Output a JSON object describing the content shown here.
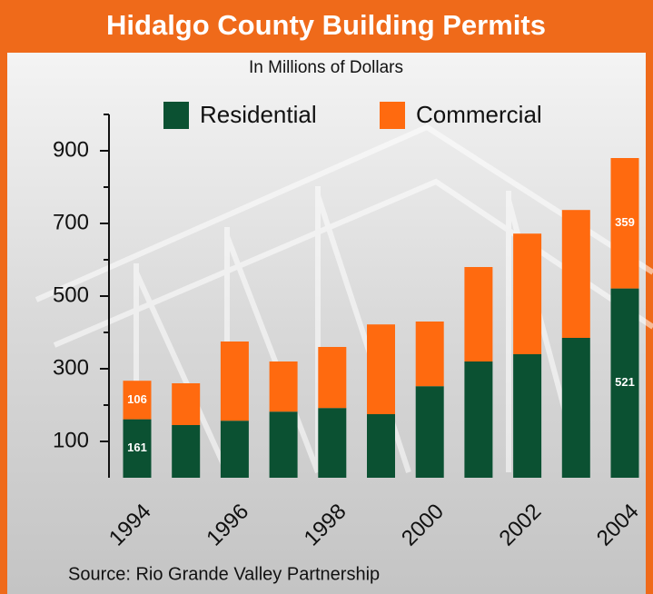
{
  "chart_data": {
    "type": "stacked_bar",
    "title": "Hidalgo County Building Permits",
    "subtitle": "In Millions of Dollars",
    "source": "Source: Rio Grande Valley Partnership",
    "categories": [
      1994,
      null,
      1996,
      null,
      1998,
      null,
      2000,
      null,
      2002,
      null,
      2004
    ],
    "series": [
      {
        "name": "Residential",
        "color": "#0b5132",
        "values": [
          161,
          145,
          157,
          182,
          192,
          175,
          252,
          320,
          340,
          385,
          521
        ],
        "value_labels": [
          "161",
          null,
          null,
          null,
          null,
          null,
          null,
          null,
          null,
          null,
          "521"
        ]
      },
      {
        "name": "Commercial",
        "color": "#ff6a0f",
        "values": [
          106,
          115,
          218,
          138,
          168,
          247,
          178,
          260,
          332,
          352,
          359
        ],
        "value_labels": [
          "106",
          null,
          null,
          null,
          null,
          null,
          null,
          null,
          null,
          null,
          "359"
        ]
      }
    ],
    "ylim": [
      0,
      1000
    ],
    "yticks": [
      100,
      300,
      500,
      700,
      900
    ],
    "minor_yticks": [
      200,
      400,
      600,
      800,
      1000
    ]
  }
}
